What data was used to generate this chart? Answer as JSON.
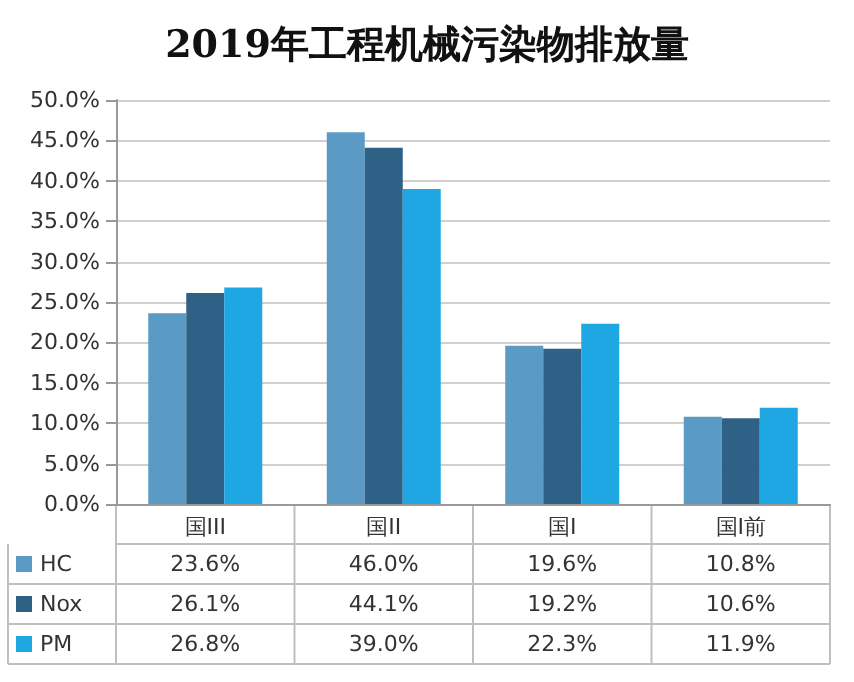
{
  "chart_data": {
    "type": "bar",
    "title": "2019年工程机械污染物排放量",
    "categories": [
      "国III",
      "国II",
      "国I",
      "国I前"
    ],
    "series": [
      {
        "name": "HC",
        "color": "#5a9ac4",
        "values": [
          23.6,
          46.0,
          19.6,
          10.8
        ],
        "value_labels": [
          "23.6%",
          "46.0%",
          "19.6%",
          "10.8%"
        ]
      },
      {
        "name": "Nox",
        "color": "#2f6186",
        "values": [
          26.1,
          44.1,
          19.2,
          10.6
        ],
        "value_labels": [
          "26.1%",
          "44.1%",
          "19.2%",
          "10.6%"
        ]
      },
      {
        "name": "PM",
        "color": "#1fa7e3",
        "values": [
          26.8,
          39.0,
          22.3,
          11.9
        ],
        "value_labels": [
          "26.8%",
          "39.0%",
          "22.3%",
          "11.9%"
        ]
      }
    ],
    "ylim": [
      0,
      50
    ],
    "yticks": [
      {
        "value": 0,
        "label": "0.0%"
      },
      {
        "value": 5,
        "label": "5.0%"
      },
      {
        "value": 10,
        "label": "10.0%"
      },
      {
        "value": 15,
        "label": "15.0%"
      },
      {
        "value": 20,
        "label": "20.0%"
      },
      {
        "value": 25,
        "label": "25.0%"
      },
      {
        "value": 30,
        "label": "30.0%"
      },
      {
        "value": 35,
        "label": "35.0%"
      },
      {
        "value": 40,
        "label": "40.0%"
      },
      {
        "value": 45,
        "label": "45.0%"
      },
      {
        "value": 50,
        "label": "50.0%"
      }
    ],
    "grid": "y",
    "legend": "bottom"
  }
}
